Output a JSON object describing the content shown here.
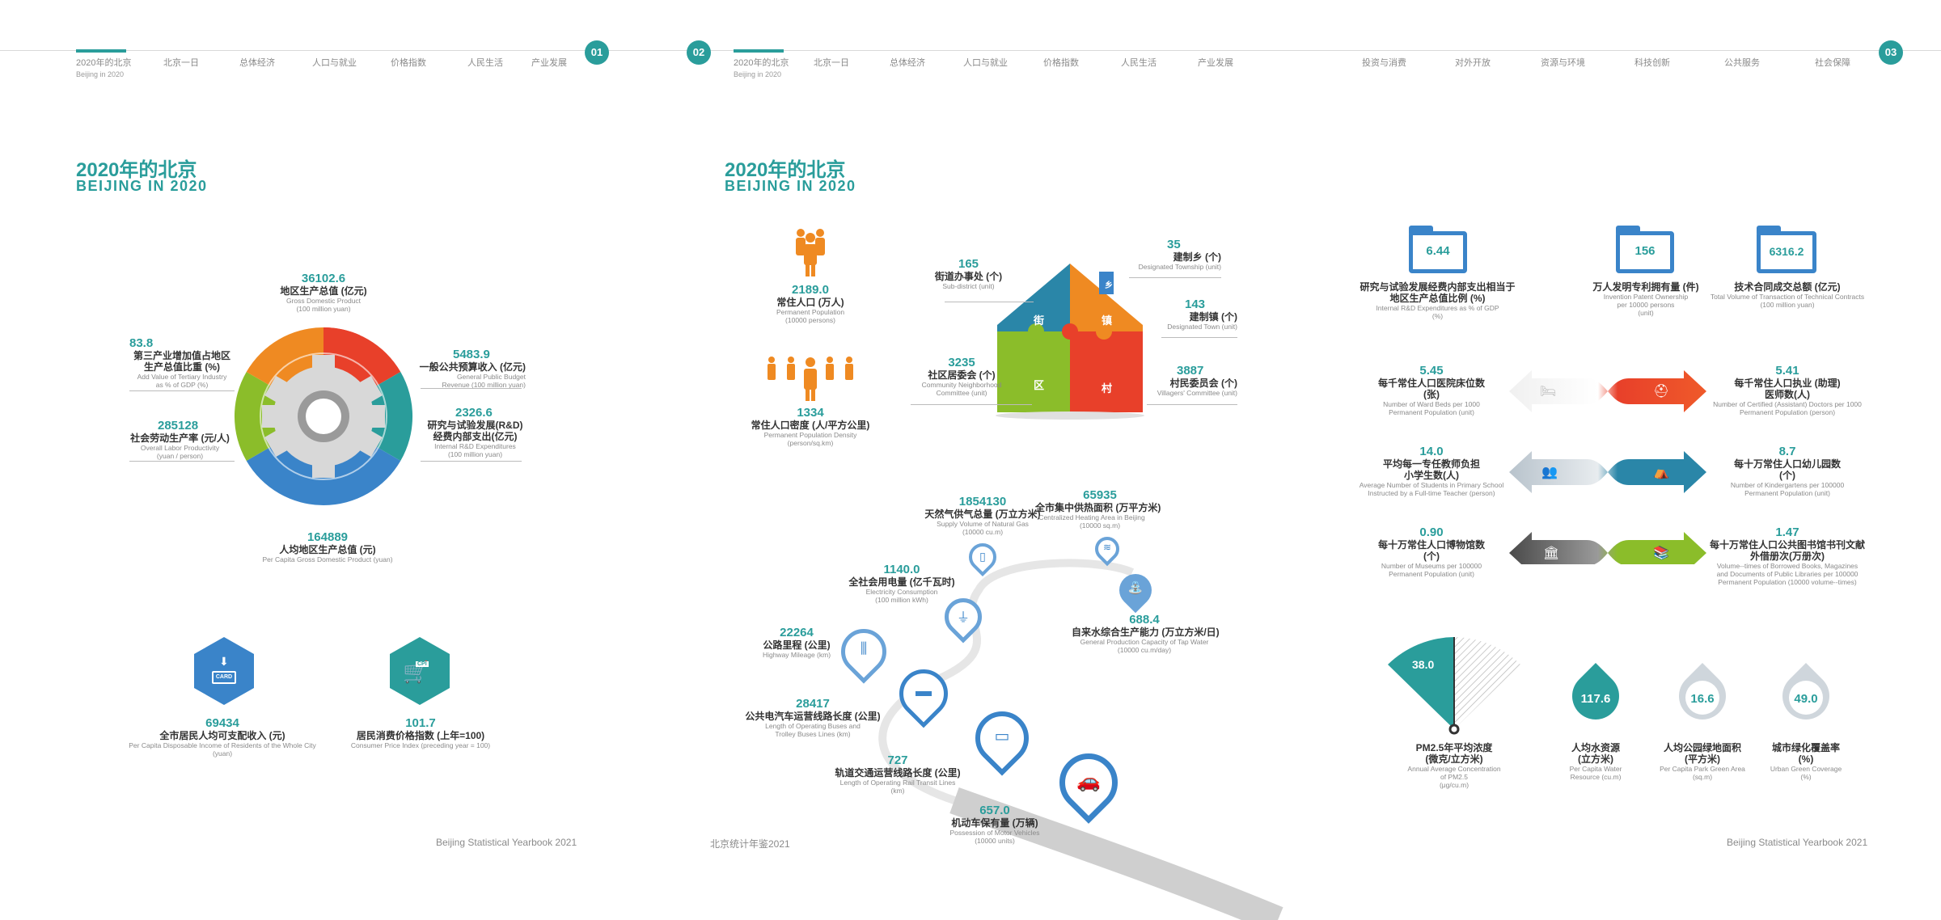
{
  "nav": {
    "page1": [
      {
        "label": "2020年的北京",
        "en": "Beijing in 2020"
      },
      {
        "label": "北京一日"
      },
      {
        "label": "总体经济"
      },
      {
        "label": "人口与就业"
      },
      {
        "label": "价格指数"
      },
      {
        "label": "人民生活"
      },
      {
        "label": "产业发展"
      }
    ],
    "page2": [
      {
        "label": "2020年的北京",
        "en": "Beijing in 2020"
      },
      {
        "label": "北京一日"
      },
      {
        "label": "总体经济"
      },
      {
        "label": "人口与就业"
      },
      {
        "label": "价格指数"
      },
      {
        "label": "人民生活"
      },
      {
        "label": "产业发展"
      }
    ],
    "page3": [
      {
        "label": "投资与消费"
      },
      {
        "label": "对外开放"
      },
      {
        "label": "资源与环境"
      },
      {
        "label": "科技创新"
      },
      {
        "label": "公共服务"
      },
      {
        "label": "社会保障"
      }
    ],
    "page_numbers": [
      "01",
      "02",
      "03"
    ]
  },
  "titles": {
    "left": {
      "cn": "2020年的北京",
      "en": "BEIJING IN 2020"
    },
    "middle": {
      "cn": "2020年的北京",
      "en": "BEIJING IN 2020"
    }
  },
  "gear_stats": {
    "gdp": {
      "value": "36102.6",
      "cn": "地区生产总值 (亿元)",
      "en1": "Gross Domestic Product",
      "en2": "(100 million yuan)"
    },
    "tertiary": {
      "value": "83.8",
      "cn1": "第三产业增加值占地区",
      "cn2": "生产总值比重 (%)",
      "en1": "Add Value of Tertiary Industry",
      "en2": "as % of GDP (%)"
    },
    "budget": {
      "value": "5483.9",
      "cn": "一般公共预算收入 (亿元)",
      "en1": "General Public Budget",
      "en2": "Revenue (100 million yuan)"
    },
    "labor": {
      "value": "285128",
      "cn": "社会劳动生产率 (元/人)",
      "en1": "Overall Labor Productivity",
      "en2": "(yuan / person)"
    },
    "rd": {
      "value": "2326.6",
      "cn1": "研究与试验发展(R&D)",
      "cn2": "经费内部支出(亿元)",
      "en1": "Internal R&D Expenditures",
      "en2": "(100 million yuan)"
    },
    "percapita": {
      "value": "164889",
      "cn": "人均地区生产总值 (元)",
      "en": "Per Capita Gross Domestic Product (yuan)"
    }
  },
  "hex_stats": {
    "income": {
      "value": "69434",
      "cn": "全市居民人均可支配收入 (元)",
      "en1": "Per Capita Disposable Income of Residents of the Whole City",
      "en2": "(yuan)",
      "icon_text": "CARD"
    },
    "cpi": {
      "value": "101.7",
      "cn": "居民消费价格指数 (上年=100)",
      "en": "Consumer Price Index (preceding year = 100)",
      "icon_text": "CPI"
    }
  },
  "population": {
    "permanent": {
      "value": "2189.0",
      "cn": "常住人口 (万人)",
      "en1": "Permanent Population",
      "en2": "(10000 persons)"
    },
    "density": {
      "value": "1334",
      "cn": "常住人口密度 (人/平方公里)",
      "en1": "Permanent Population Density",
      "en2": "(person/sq.km)"
    }
  },
  "house": {
    "labels": {
      "jie": "街",
      "zhen": "镇",
      "qu": "区",
      "cun": "村",
      "xiang": "乡"
    },
    "subdistrict": {
      "value": "165",
      "cn": "街道办事处 (个)",
      "en": "Sub-district (unit)"
    },
    "township": {
      "value": "35",
      "cn": "建制乡 (个)",
      "en": "Designated Township (unit)"
    },
    "town": {
      "value": "143",
      "cn": "建制镇 (个)",
      "en": "Designated Town (unit)"
    },
    "community": {
      "value": "3235",
      "cn": "社区居委会 (个)",
      "en1": "Community Neighborhood",
      "en2": "Committee (unit)"
    },
    "villagers": {
      "value": "3887",
      "cn": "村民委员会 (个)",
      "en": "Villagers' Committee (unit)"
    }
  },
  "road": {
    "gas": {
      "value": "1854130",
      "cn": "天然气供气总量 (万立方米)",
      "en1": "Supply Volume of Natural Gas",
      "en2": "(10000 cu.m)"
    },
    "heating": {
      "value": "65935",
      "cn": "全市集中供热面积 (万平方米)",
      "en1": "Centralized Heating Area in Beijing",
      "en2": "(10000 sq.m)"
    },
    "electricity": {
      "value": "1140.0",
      "cn": "全社会用电量 (亿千瓦时)",
      "en1": "Electricity Consumption",
      "en2": "(100 million kWh)"
    },
    "water": {
      "value": "688.4",
      "cn": "自来水综合生产能力 (万立方米/日)",
      "en1": "General Production Capacity of Tap Water",
      "en2": "(10000 cu.m/day)"
    },
    "highway": {
      "value": "22264",
      "cn": "公路里程 (公里)",
      "en": "Highway Mileage (km)"
    },
    "buses": {
      "value": "28417",
      "cn": "公共电汽车运营线路长度 (公里)",
      "en1": "Length of Operating Buses and",
      "en2": "Trolley Buses Lines (km)"
    },
    "rail": {
      "value": "727",
      "cn": "轨道交通运营线路长度 (公里)",
      "en1": "Length of Operating Rail Transit Lines",
      "en2": "(km)"
    },
    "vehicles": {
      "value": "657.0",
      "cn": "机动车保有量 (万辆)",
      "en1": "Possession of Motor Vehicles",
      "en2": "(10000 units)"
    }
  },
  "tech": {
    "rd_ratio": {
      "value": "6.44",
      "cn1": "研究与试验发展经费内部支出相当于",
      "cn2": "地区生产总值比例 (%)",
      "en1": "Internal R&D Expenditures as % of GDP",
      "en2": "(%)"
    },
    "patents": {
      "value": "156",
      "cn": "万人发明专利拥有量 (件)",
      "en1": "Invention Patent Ownership",
      "en2": "per 10000 persons",
      "en3": "(unit)"
    },
    "contracts": {
      "value": "6316.2",
      "cn": "技术合同成交总额 (亿元)",
      "en1": "Total Volume of Transaction of Technical Contracts",
      "en2": "(100 million yuan)"
    }
  },
  "services": {
    "beds": {
      "value": "5.45",
      "cn1": "每千常住人口医院床位数",
      "cn2": "(张)",
      "en1": "Number of Ward Beds per 1000",
      "en2": "Permanent Population (unit)"
    },
    "doctors": {
      "value": "5.41",
      "cn1": "每千常住人口执业 (助理)",
      "cn2": "医师数(人)",
      "en1": "Number of Certified (Assistant) Doctors per 1000",
      "en2": "Permanent Population (person)"
    },
    "students": {
      "value": "14.0",
      "cn1": "平均每一专任教师负担",
      "cn2": "小学生数(人)",
      "en1": "Average Number of Students in Primary School",
      "en2": "Instructed by a Full-time Teacher (person)"
    },
    "kindergartens": {
      "value": "8.7",
      "cn1": "每十万常住人口幼儿园数",
      "cn2": "(个)",
      "en1": "Number of Kindergartens per 100000",
      "en2": "Permanent Population (unit)"
    },
    "museums": {
      "value": "0.90",
      "cn1": "每十万常住人口博物馆数",
      "cn2": "(个)",
      "en1": "Number of Museums per 100000",
      "en2": "Permanent Population (unit)"
    },
    "library": {
      "value": "1.47",
      "cn1": "每十万常住人口公共图书馆书刊文献",
      "cn2": "外借册次(万册次)",
      "en1": "Volume--times of Borrowed Books, Magazines",
      "en2": "and Documents of Public Libraries per 100000",
      "en3": "Permanent Population (10000 volume--times)"
    }
  },
  "environment": {
    "pm25": {
      "value": "38.0",
      "cn1": "PM2.5年平均浓度",
      "cn2": "(微克/立方米)",
      "en1": "Annual Average Concentration",
      "en2": "of PM2.5",
      "en3": "(μg/cu.m)"
    },
    "water_res": {
      "value": "117.6",
      "cn1": "人均水资源",
      "cn2": "(立方米)",
      "en1": "Per Capita Water",
      "en2": "Resource (cu.m)"
    },
    "park": {
      "value": "16.6",
      "cn1": "人均公园绿地面积",
      "cn2": "(平方米)",
      "en1": "Per Capita Park Green Area",
      "en2": "(sq.m)"
    },
    "green": {
      "value": "49.0",
      "cn1": "城市绿化覆盖率",
      "cn2": "(%)",
      "en1": "Urban Green Coverage",
      "en2": "(%)"
    }
  },
  "footers": {
    "left": "Beijing Statistical Yearbook 2021",
    "middle": "北京统计年鉴2021",
    "right": "Beijing Statistical Yearbook 2021"
  },
  "colors": {
    "teal": "#2a9d9b",
    "blue": "#3a84c9",
    "red": "#e8402a",
    "orange": "#ef8a22",
    "green": "#8bbd2a",
    "gray": "#8a8a8a"
  }
}
